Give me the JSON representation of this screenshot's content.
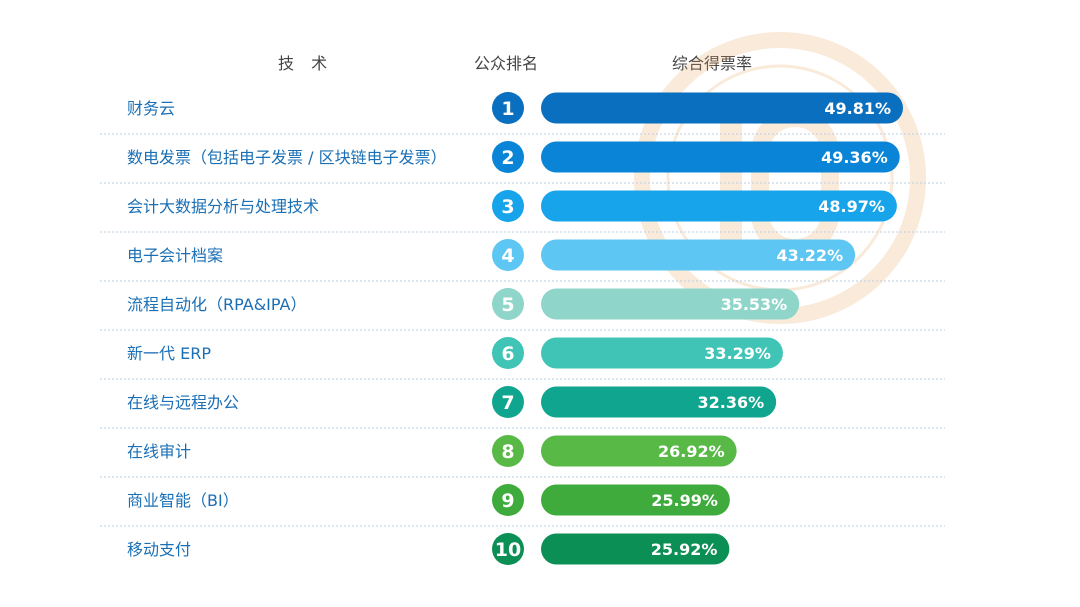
{
  "headers": {
    "technology": "技 术",
    "rank": "公众排名",
    "score": "综合得票率"
  },
  "chart_data": {
    "type": "bar",
    "orientation": "horizontal",
    "categories": [
      "财务云",
      "数电发票（包括电子发票 / 区块链电子发票）",
      "会计大数据分析与处理技术",
      "电子会计档案",
      "流程自动化（RPA&IPA）",
      "新一代 ERP",
      "在线与远程办公",
      "在线审计",
      "商业智能（BI）",
      "移动支付"
    ],
    "ranks": [
      "1",
      "2",
      "3",
      "4",
      "5",
      "6",
      "7",
      "8",
      "9",
      "10"
    ],
    "values": [
      49.81,
      49.36,
      48.97,
      43.22,
      35.53,
      33.29,
      32.36,
      26.92,
      25.99,
      25.92
    ],
    "value_labels": [
      "49.81%",
      "49.36%",
      "48.97%",
      "43.22%",
      "35.53%",
      "33.29%",
      "32.36%",
      "26.92%",
      "25.99%",
      "25.92%"
    ],
    "colors": [
      "#0a6fbf",
      "#0a84d6",
      "#17a4ea",
      "#5ec6f2",
      "#8fd5c9",
      "#40c4b6",
      "#10a58e",
      "#58b947",
      "#3fab3d",
      "#0c8f55"
    ],
    "units": "%"
  },
  "colors": {
    "category_text": "#1a6fb5",
    "header_text": "#444444",
    "divider": "#b9cfe6",
    "watermark": "#e8a35a"
  }
}
